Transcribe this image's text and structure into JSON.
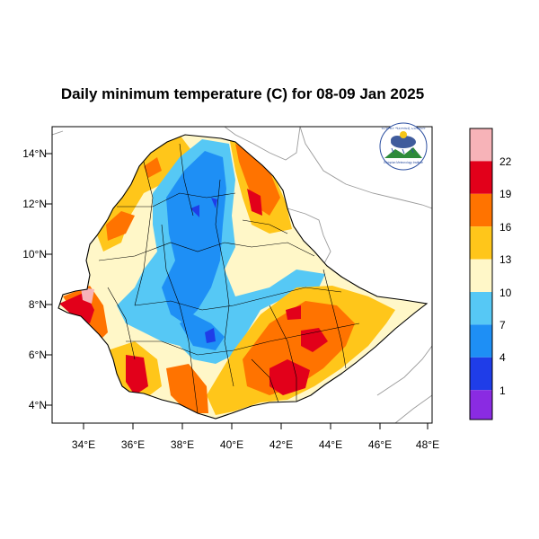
{
  "title": "Daily minimum temperature (C) for 08-09 Jan 2025",
  "logo": {
    "top_text": "የኢትዮጵያ ሚቲዎሮሎጂ ኢንስቲትዩት",
    "bottom_text": "Ethiopian Meteorology Institute"
  },
  "axes": {
    "x_ticks": [
      "34°E",
      "36°E",
      "38°E",
      "40°E",
      "42°E",
      "44°E",
      "46°E",
      "48°E"
    ],
    "y_ticks": [
      "14°N",
      "12°N",
      "10°N",
      "8°N",
      "6°N",
      "4°N"
    ]
  },
  "colorbar": {
    "labels": [
      "22",
      "19",
      "16",
      "13",
      "10",
      "7",
      "4",
      "1"
    ],
    "colors": [
      "#f7b3b8",
      "#e2001a",
      "#ff7300",
      "#ffc61a",
      "#fff7c8",
      "#56c8f5",
      "#1e8ff5",
      "#1f3de8",
      "#8a2be2"
    ]
  },
  "palette": {
    "pale": "#fff7c8",
    "yellow": "#ffc61a",
    "orange": "#ff7300",
    "red": "#e2001a",
    "pink": "#f7b3b8",
    "lightblue": "#56c8f5",
    "blue": "#1e8ff5",
    "darkblue": "#1f3de8",
    "neighbor_border": "#9a9a9a"
  }
}
